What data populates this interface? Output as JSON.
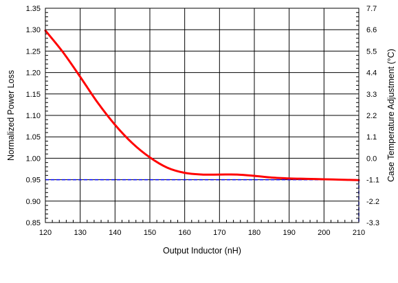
{
  "chart_data": {
    "type": "line",
    "title": "",
    "xlabel": "Output Inductor (nH)",
    "ylabel": "Normalized Power Loss",
    "y2label": "Case Temperature Adjustment (°C)",
    "xlim": [
      120,
      210
    ],
    "ylim": [
      0.85,
      1.35
    ],
    "y2lim": [
      -3.3,
      7.7
    ],
    "grid": true,
    "x_ticks": [
      "120",
      "130",
      "140",
      "150",
      "160",
      "170",
      "180",
      "190",
      "200",
      "210"
    ],
    "y_ticks": [
      "0.85",
      "0.90",
      "0.95",
      "1.00",
      "1.05",
      "1.10",
      "1.15",
      "1.20",
      "1.25",
      "1.30",
      "1.35"
    ],
    "y2_ticks": [
      "-3.3",
      "-2.2",
      "-1.1",
      "0.0",
      "1.1",
      "2.2",
      "3.3",
      "4.4",
      "5.5",
      "6.6",
      "7.7"
    ],
    "series": [
      {
        "color": "#ff0000",
        "x": [
          120,
          125,
          130,
          135,
          140,
          145,
          150,
          155,
          160,
          165,
          170,
          175,
          180,
          185,
          190,
          195,
          200,
          205,
          210
        ],
        "y": [
          1.298,
          1.248,
          1.19,
          1.13,
          1.078,
          1.035,
          1.002,
          0.978,
          0.966,
          0.962,
          0.962,
          0.962,
          0.959,
          0.955,
          0.953,
          0.952,
          0.951,
          0.95,
          0.949
        ]
      }
    ],
    "reference_line": {
      "y": 0.95,
      "color": "#0000ff",
      "style": "dashed"
    }
  }
}
